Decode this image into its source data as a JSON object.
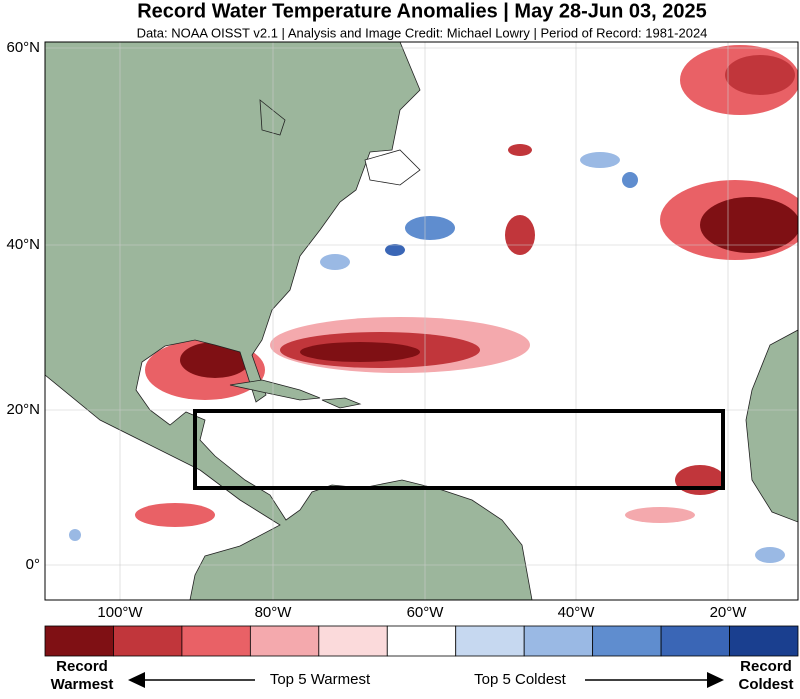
{
  "title": "Record Water Temperature Anomalies | May 28-Jun 03, 2025",
  "subtitle": "Data: NOAA OISST v2.1 | Analysis and Image Credit: Michael Lowry | Period of Record: 1981-2024",
  "map": {
    "lat_labels": [
      "60°N",
      "40°N",
      "20°N",
      "0°"
    ],
    "lon_labels": [
      "100°W",
      "80°W",
      "60°W",
      "40°W",
      "20°W"
    ]
  },
  "legend": {
    "colors": [
      "#7f1014",
      "#c1363b",
      "#e96166",
      "#f4a9ad",
      "#fbdadb",
      "#ffffff",
      "#c6d8f0",
      "#9ab9e4",
      "#5f8dcf",
      "#3a66b6",
      "#1a3f8f"
    ],
    "left_top": "Record",
    "left_bottom": "Warmest",
    "warm_label": "Top 5 Warmest",
    "cold_label": "Top 5 Coldest",
    "right_top": "Record",
    "right_bottom": "Coldest"
  }
}
